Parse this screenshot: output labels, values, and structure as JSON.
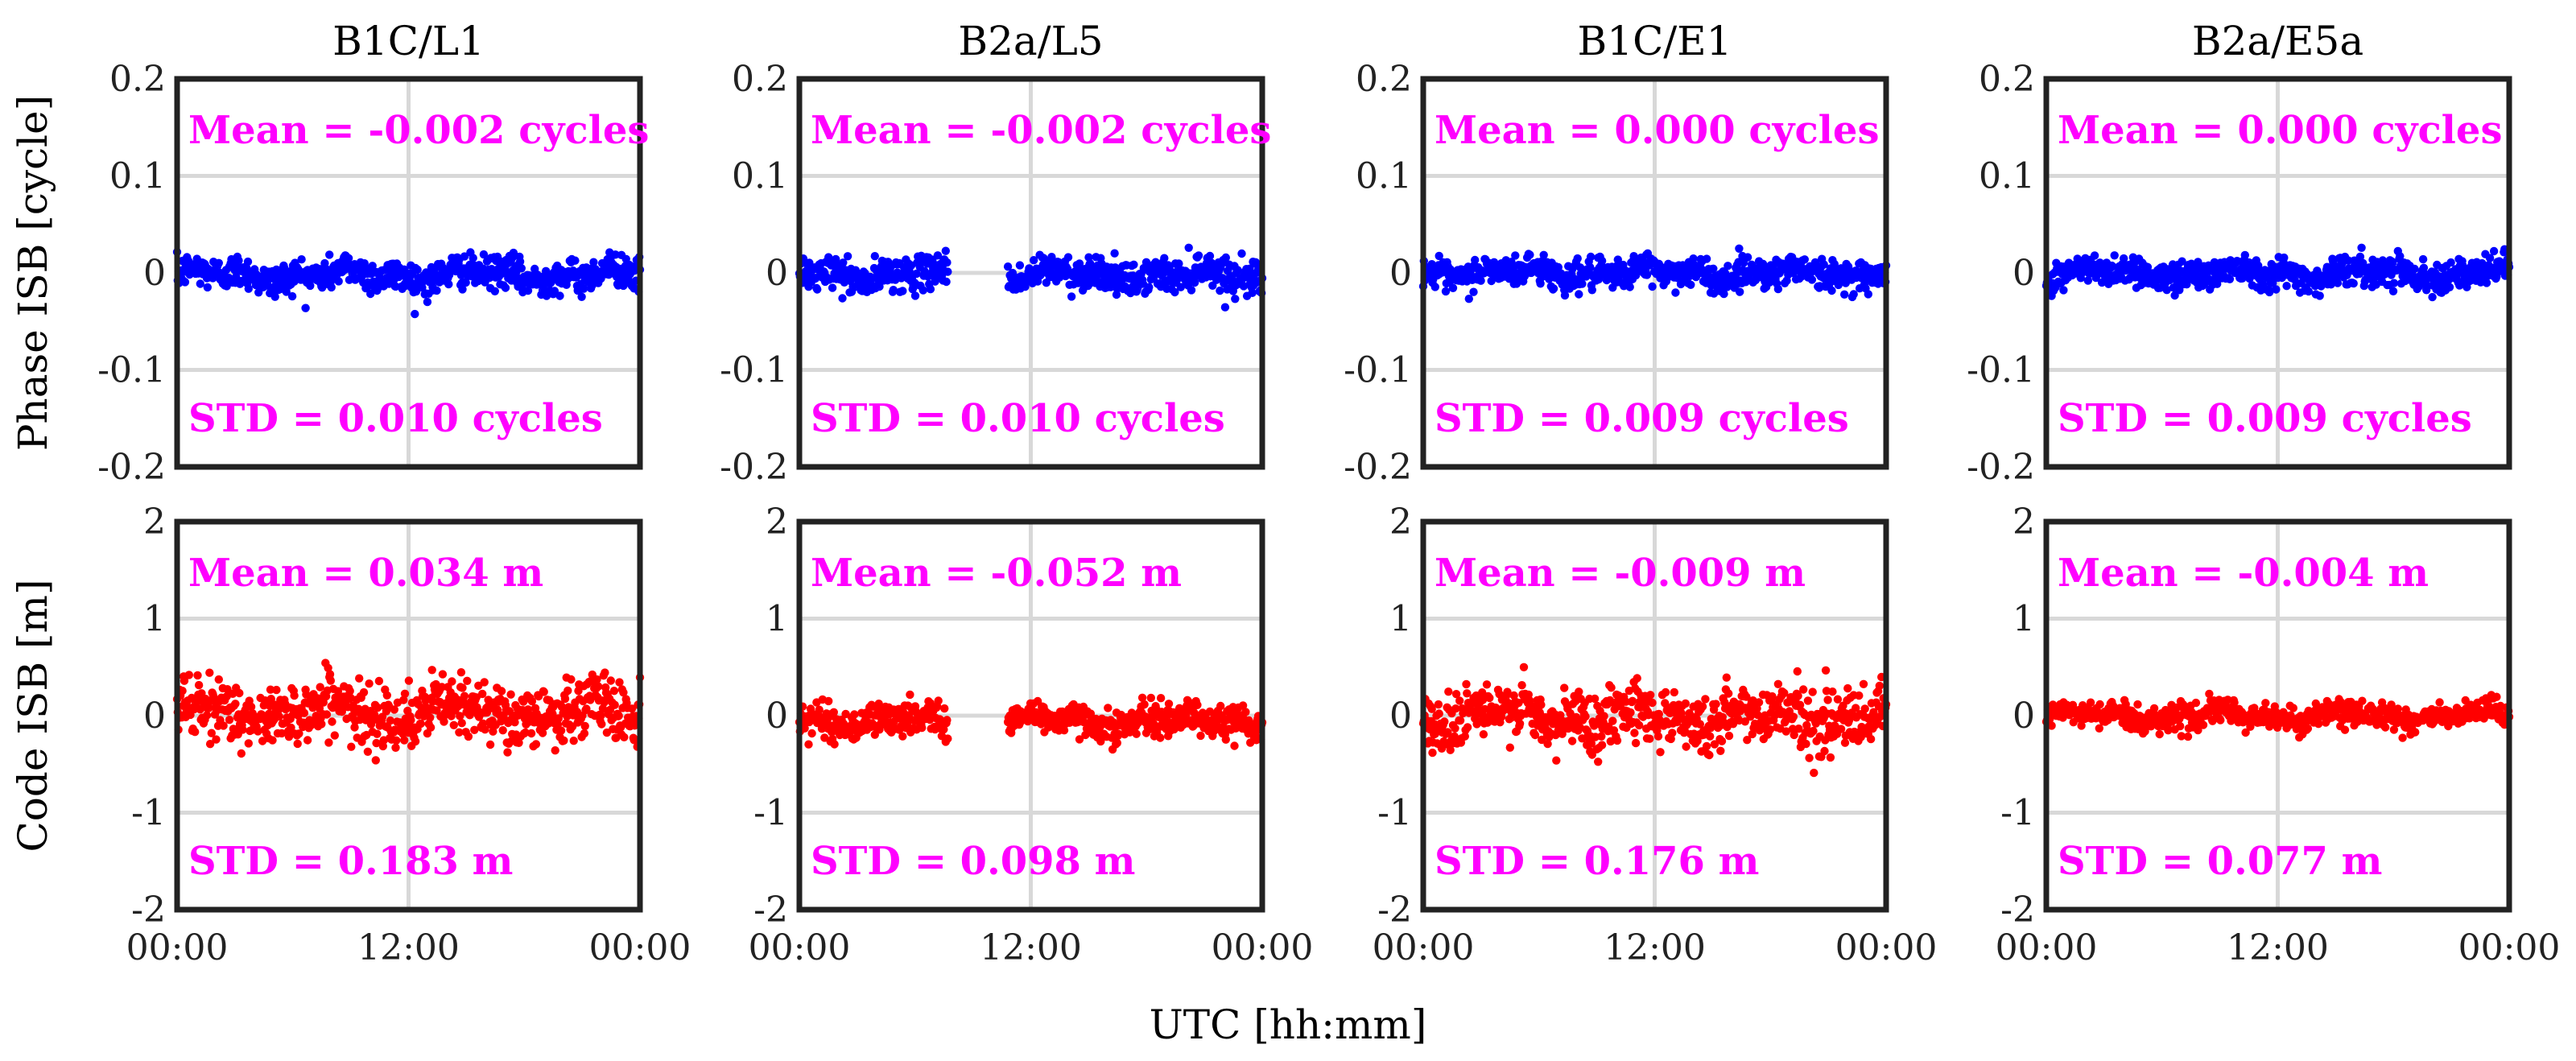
{
  "chart_data": {
    "type": "scatter",
    "layout": "2 rows x 4 columns",
    "columns": [
      "B1C/L1",
      "B2a/L5",
      "B1C/E1",
      "B2a/E5a"
    ],
    "xlabel": "UTC [hh:mm]",
    "x_ticks": [
      "00:00",
      "12:00",
      "00:00"
    ],
    "x_range_hours": [
      0,
      24
    ],
    "rows": [
      {
        "ylabel": "Phase ISB [cycle]",
        "ylim": [
          -0.2,
          0.2
        ],
        "y_ticks": [
          "0.2",
          "0.1",
          "0",
          "-0.1",
          "-0.2"
        ],
        "y_tick_values": [
          0.2,
          0.1,
          0,
          -0.1,
          -0.2
        ],
        "color": "#0000ff",
        "panels": [
          {
            "column": "B1C/L1",
            "mean_label": "Mean = -0.002 cycles",
            "std_label": "STD  = 0.010 cycles",
            "mean": -0.002,
            "std": 0.01,
            "gaps_hours": []
          },
          {
            "column": "B2a/L5",
            "mean_label": "Mean = -0.002 cycles",
            "std_label": "STD  = 0.010 cycles",
            "mean": -0.002,
            "std": 0.01,
            "gaps_hours": [
              [
                7.7,
                10.8
              ]
            ]
          },
          {
            "column": "B1C/E1",
            "mean_label": "Mean = 0.000 cycles",
            "std_label": "STD  = 0.009 cycles",
            "mean": 0.0,
            "std": 0.009,
            "gaps_hours": []
          },
          {
            "column": "B2a/E5a",
            "mean_label": "Mean = 0.000 cycles",
            "std_label": "STD  = 0.009 cycles",
            "mean": 0.0,
            "std": 0.009,
            "gaps_hours": []
          }
        ]
      },
      {
        "ylabel": "Code ISB [m]",
        "ylim": [
          -2,
          2
        ],
        "y_ticks": [
          "2",
          "1",
          "0",
          "-1",
          "-2"
        ],
        "y_tick_values": [
          2,
          1,
          0,
          -1,
          -2
        ],
        "color": "#ff0000",
        "panels": [
          {
            "column": "B1C/L1",
            "mean_label": "Mean = 0.034 m",
            "std_label": "STD  = 0.183 m",
            "mean": 0.034,
            "std": 0.183,
            "gaps_hours": []
          },
          {
            "column": "B2a/L5",
            "mean_label": "Mean = -0.052 m",
            "std_label": "STD  = 0.098 m",
            "mean": -0.052,
            "std": 0.098,
            "gaps_hours": [
              [
                7.7,
                10.8
              ]
            ]
          },
          {
            "column": "B1C/E1",
            "mean_label": "Mean = -0.009 m",
            "std_label": "STD  = 0.176 m",
            "mean": -0.009,
            "std": 0.176,
            "gaps_hours": []
          },
          {
            "column": "B2a/E5a",
            "mean_label": "Mean = -0.004 m",
            "std_label": "STD  = 0.077 m",
            "mean": -0.004,
            "std": 0.077,
            "gaps_hours": []
          }
        ]
      }
    ],
    "annotation_color": "#ff00ff",
    "grid": true
  }
}
